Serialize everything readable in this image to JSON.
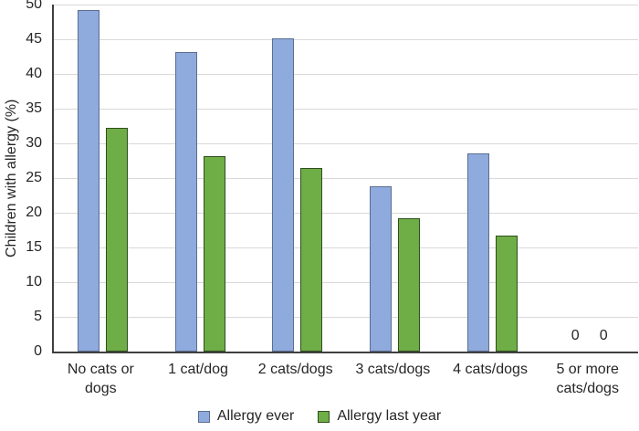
{
  "chart_data": {
    "type": "bar",
    "title": "",
    "xlabel": "",
    "ylabel": "Children with allergy (%)",
    "ylim": [
      0,
      50
    ],
    "ytick_step": 5,
    "yticks": [
      0,
      5,
      10,
      15,
      20,
      25,
      30,
      35,
      40,
      45,
      50
    ],
    "grid": "horizontal",
    "legend_position": "bottom",
    "categories": [
      "No cats or dogs",
      "1 cat/dog",
      "2 cats/dogs",
      "3 cats/dogs",
      "4 cats/dogs",
      "5 or more cats/dogs"
    ],
    "series": [
      {
        "name": "Allergy ever",
        "fill": "#8FAADC",
        "border": "#5B6E92",
        "values": [
          49.2,
          43.1,
          45.1,
          23.8,
          28.6,
          0
        ]
      },
      {
        "name": "Allergy last year",
        "fill": "#6FAD47",
        "border": "#2F4F1E",
        "values": [
          32.3,
          28.2,
          26.5,
          19.2,
          16.7,
          0
        ]
      }
    ],
    "zero_value_label": "0",
    "colors": {
      "gridline": "#D9D9D9",
      "axis": "#404040",
      "text": "#262626",
      "background": "#FFFFFF"
    }
  }
}
